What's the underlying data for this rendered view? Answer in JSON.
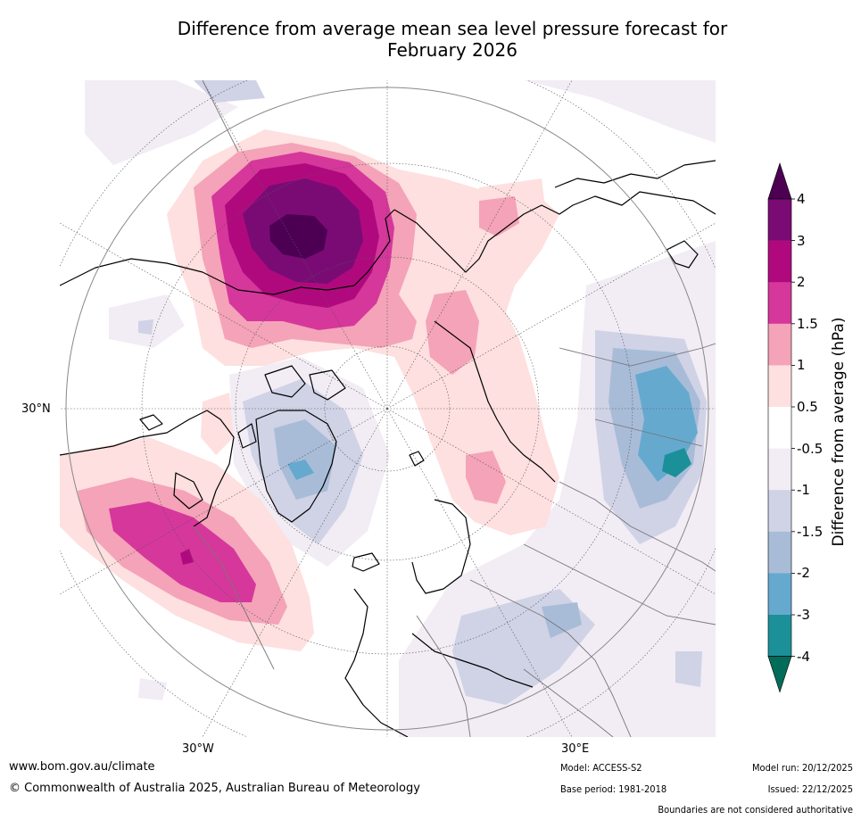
{
  "title": {
    "line1": "Difference from average mean sea level pressure forecast for",
    "line2": "February 2026"
  },
  "map": {
    "type": "polar-stereographic",
    "hemisphere": "northern",
    "latitude_labels": [
      "30°N"
    ],
    "longitude_labels": [
      "30°W",
      "30°E"
    ],
    "features": [
      {
        "name": "strong positive anomaly",
        "region": "North Pacific / Bering Sea / Alaska",
        "peak_hpa": 4
      },
      {
        "name": "positive anomaly",
        "region": "North Atlantic west of Europe",
        "peak_hpa": 3
      },
      {
        "name": "weak positive anomaly",
        "region": "Siberia / Arctic Russia",
        "peak_hpa": 1.5
      },
      {
        "name": "negative anomaly",
        "region": "Canadian Arctic / Greenland",
        "peak_hpa": -2
      },
      {
        "name": "negative anomaly",
        "region": "Central Asia / Himalaya",
        "peak_hpa": -4
      },
      {
        "name": "weak negative anomaly",
        "region": "Mediterranean / Middle East",
        "peak_hpa": -2
      }
    ]
  },
  "colorbar": {
    "title": "Difference from average (hPa)",
    "ticks": [
      "4",
      "3",
      "2",
      "1.5",
      "1",
      "0.5",
      "-0.5",
      "-1",
      "-1.5",
      "-2",
      "-3",
      "-4"
    ],
    "bands": [
      {
        "range": "3 to 4",
        "color": "#7a0b75"
      },
      {
        "range": "2 to 3",
        "color": "#b0097e"
      },
      {
        "range": "1.5 to 2",
        "color": "#d6379b"
      },
      {
        "range": "1 to 1.5",
        "color": "#f4a3b8"
      },
      {
        "range": "0.5 to 1",
        "color": "#fde0df"
      },
      {
        "range": "-0.5 to 0.5",
        "color": "#ffffff"
      },
      {
        "range": "-1 to -0.5",
        "color": "#f2ecf4"
      },
      {
        "range": "-1.5 to -1",
        "color": "#d0d2e6"
      },
      {
        "range": "-2 to -1.5",
        "color": "#a8bcd8"
      },
      {
        "range": "-3 to -2",
        "color": "#66a9cf"
      },
      {
        "range": "-4 to -3",
        "color": "#1c9099"
      }
    ],
    "over_color": "#4d0053",
    "under_color": "#016c59"
  },
  "footer": {
    "website": "www.bom.gov.au/climate",
    "copyright": "© Commonwealth of Australia 2025, Australian Bureau of Meteorology",
    "model": "Model: ACCESS-S2",
    "base_period": "Base period: 1981-2018",
    "model_run": "Model run: 20/12/2025",
    "issued": "Issued: 22/12/2025",
    "disclaimer": "Boundaries are not considered authoritative"
  }
}
